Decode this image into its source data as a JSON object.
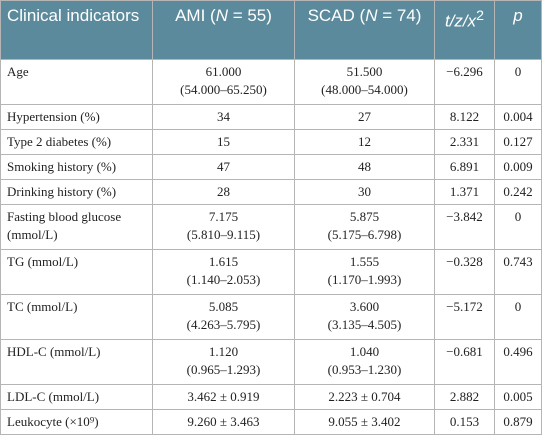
{
  "table": {
    "header": [
      [
        {
          "t": "Clinical indicators"
        }
      ],
      [
        {
          "t": "AMI ("
        },
        {
          "t": "N",
          "italic": true
        },
        {
          "t": " = 55)"
        }
      ],
      [
        {
          "t": "SCAD ("
        },
        {
          "t": "N",
          "italic": true
        },
        {
          "t": " = 74)"
        }
      ],
      [
        {
          "t": "t/z/x",
          "italic": true
        },
        {
          "t": "2",
          "sup": true
        }
      ],
      [
        {
          "t": "p",
          "italic": true
        }
      ]
    ],
    "rows": [
      [
        "Age",
        [
          "61.000",
          "(54.000–65.250)"
        ],
        [
          "51.500",
          "(48.000–54.000)"
        ],
        "−6.296",
        "0"
      ],
      [
        "Hypertension (%)",
        "34",
        "27",
        "8.122",
        "0.004"
      ],
      [
        "Type 2 diabetes (%)",
        "15",
        "12",
        "2.331",
        "0.127"
      ],
      [
        "Smoking history (%)",
        "47",
        "48",
        "6.891",
        "0.009"
      ],
      [
        "Drinking history (%)",
        "28",
        "30",
        "1.371",
        "0.242"
      ],
      [
        "Fasting blood glucose (mmol/L)",
        [
          "7.175",
          "(5.810–9.115)"
        ],
        [
          "5.875",
          "(5.175–6.798)"
        ],
        "−3.842",
        "0"
      ],
      [
        "TG (mmol/L)",
        [
          "1.615",
          "(1.140–2.053)"
        ],
        [
          "1.555",
          "(1.170–1.993)"
        ],
        "−0.328",
        "0.743"
      ],
      [
        "TC (mmol/L)",
        [
          "5.085",
          "(4.263–5.795)"
        ],
        [
          "3.600",
          "(3.135–4.505)"
        ],
        "−5.172",
        "0"
      ],
      [
        "HDL-C (mmol/L)",
        [
          "1.120",
          "(0.965–1.293)"
        ],
        [
          "1.040",
          "(0.953–1.230)"
        ],
        "−0.681",
        "0.496"
      ],
      [
        "LDL-C (mmol/L)",
        "3.462 ± 0.919",
        "2.223 ± 0.704",
        "2.882",
        "0.005"
      ],
      [
        "Leukocyte (×10⁹)",
        "9.260 ± 3.463",
        "9.055 ± 3.402",
        "0.153",
        "0.879"
      ]
    ]
  }
}
